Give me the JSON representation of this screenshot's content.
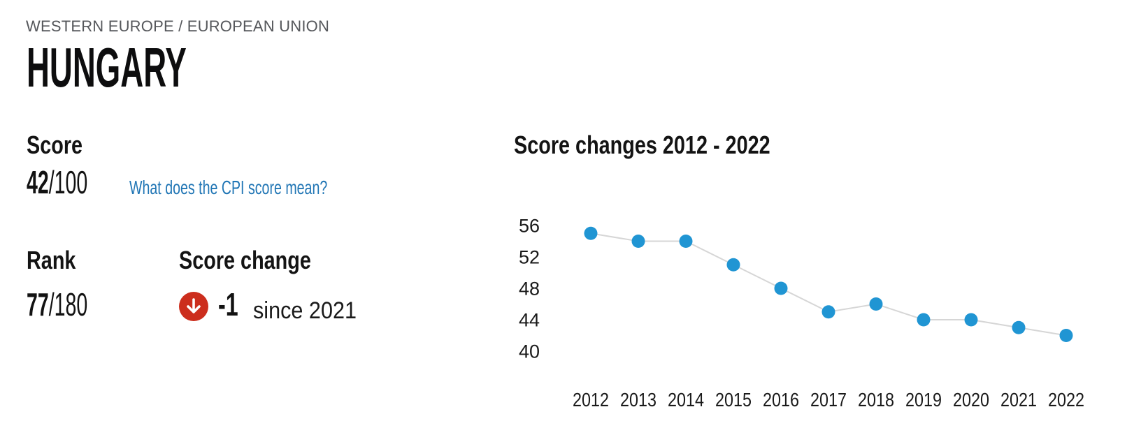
{
  "header": {
    "breadcrumb": "WESTERN EUROPE / EUROPEAN UNION",
    "title": "HUNGARY"
  },
  "score": {
    "label": "Score",
    "value": "42",
    "denominator": "/100",
    "link_label": "What does the CPI score mean?",
    "link_color": "#2176b5"
  },
  "rank": {
    "label": "Rank",
    "value": "77",
    "denominator": "/180"
  },
  "score_change": {
    "label": "Score change",
    "value": "-1",
    "suffix": "since 2021",
    "direction": "down",
    "icon_color": "#cc2e1d",
    "icon_arrow_color": "#ffffff"
  },
  "chart_data": {
    "type": "line",
    "title": "Score changes 2012 - 2022",
    "x": [
      "2012",
      "2013",
      "2014",
      "2015",
      "2016",
      "2017",
      "2018",
      "2019",
      "2020",
      "2021",
      "2022"
    ],
    "values": [
      55,
      54,
      54,
      51,
      48,
      45,
      46,
      44,
      44,
      43,
      42
    ],
    "yticks": [
      56,
      52,
      48,
      44,
      40
    ],
    "ylim": [
      40,
      58
    ],
    "grid": false,
    "legend": "none",
    "point_color": "#2095d3",
    "line_color": "#d6d6d6",
    "axis_text_color": "#1a1a1a"
  }
}
